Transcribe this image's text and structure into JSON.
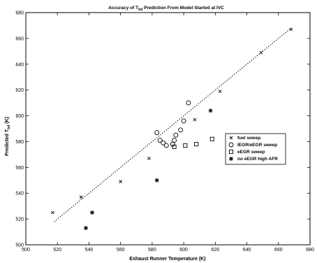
{
  "chart_data": {
    "type": "scatter",
    "title_parts": [
      "Accuracy of T",
      "bd",
      " Prediction From Model Started at IVC"
    ],
    "xlabel": "Exhaust Runner Temperature (K)",
    "ylabel_parts": [
      "Predicted T",
      "bd",
      " (K)"
    ],
    "xlim": [
      500,
      680
    ],
    "ylim": [
      500,
      680
    ],
    "xticks": [
      500,
      520,
      540,
      560,
      580,
      600,
      620,
      640,
      660,
      680
    ],
    "yticks": [
      500,
      520,
      540,
      560,
      580,
      600,
      620,
      640,
      660,
      680
    ],
    "xtick_labels": [
      "500",
      "520",
      "540",
      "560",
      "580",
      "600",
      "620",
      "640",
      "660",
      "680"
    ],
    "ytick_labels": [
      "500",
      "520",
      "540",
      "560",
      "580",
      "600",
      "620",
      "640",
      "660",
      "680"
    ],
    "grid": false,
    "legend_position": "right",
    "fit_line": {
      "x": [
        518,
        668
      ],
      "y": [
        518,
        668
      ]
    },
    "series": [
      {
        "name": "fuel sweep",
        "marker": "x",
        "x": [
          517,
          535,
          560,
          578,
          607,
          623,
          649,
          668
        ],
        "y": [
          525,
          537,
          549,
          567,
          597,
          619,
          649,
          667
        ]
      },
      {
        "name": "IEGR/eEGR sweep",
        "marker": "circle",
        "x": [
          583,
          585,
          587,
          589,
          593,
          594,
          595,
          598,
          600,
          603
        ],
        "y": [
          587,
          581,
          579,
          577,
          578,
          581,
          585,
          589,
          596,
          610
        ]
      },
      {
        "name": "eEGR sweep",
        "marker": "square",
        "x": [
          594,
          601,
          608,
          618
        ],
        "y": [
          576,
          577,
          578,
          582
        ]
      },
      {
        "name": "no eEGR high AFR",
        "marker": "star",
        "x": [
          538,
          542,
          583,
          617
        ],
        "y": [
          513,
          525,
          550,
          604
        ]
      }
    ]
  }
}
